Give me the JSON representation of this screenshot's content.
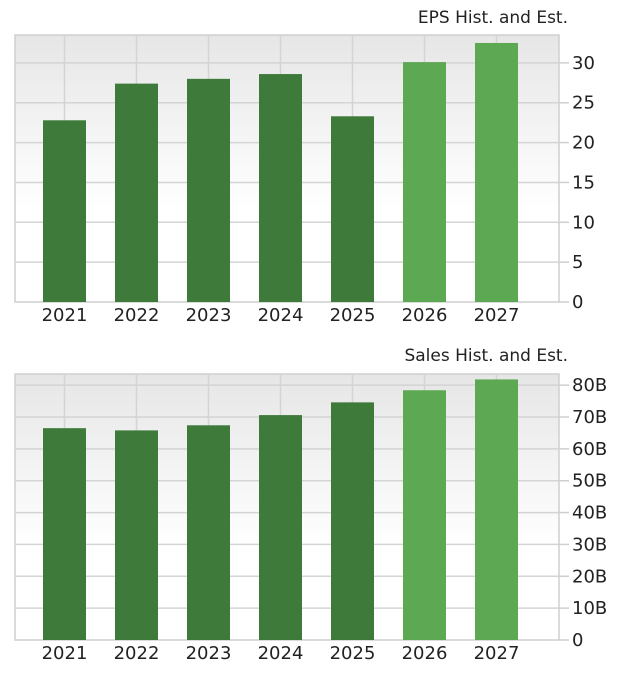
{
  "colors": {
    "historical": "#3e7a3a",
    "estimate": "#5da852",
    "grid": "#d4d4d4",
    "border": "#cfcfcf",
    "plot_bg_top": "#e6e6e6",
    "plot_bg_bottom": "#ffffff"
  },
  "chart_data": [
    {
      "type": "bar",
      "title": "EPS Hist. and Est.",
      "xlabel": "",
      "ylabel": "",
      "categories": [
        "2021",
        "2022",
        "2023",
        "2024",
        "2025",
        "2026",
        "2027"
      ],
      "series": [
        {
          "name": "EPS",
          "values": [
            22.8,
            27.4,
            28.0,
            28.6,
            23.3,
            30.1,
            32.5
          ]
        }
      ],
      "bar_kind": [
        "historical",
        "historical",
        "historical",
        "historical",
        "historical",
        "estimate",
        "estimate"
      ],
      "yticks": [
        0,
        5,
        10,
        15,
        20,
        25,
        30
      ],
      "ytick_labels": [
        "0",
        "5",
        "10",
        "15",
        "20",
        "25",
        "30"
      ],
      "ylim": [
        0,
        33.5
      ],
      "grid": true,
      "axis_position": "right",
      "legend": null
    },
    {
      "type": "bar",
      "title": "Sales Hist. and Est.",
      "xlabel": "",
      "ylabel": "",
      "categories": [
        "2021",
        "2022",
        "2023",
        "2024",
        "2025",
        "2026",
        "2027"
      ],
      "series": [
        {
          "name": "Sales",
          "values": [
            66.5,
            65.8,
            67.4,
            70.6,
            74.6,
            78.4,
            81.8
          ]
        }
      ],
      "value_unit": "B",
      "bar_kind": [
        "historical",
        "historical",
        "historical",
        "historical",
        "historical",
        "estimate",
        "estimate"
      ],
      "yticks": [
        0,
        10,
        20,
        30,
        40,
        50,
        60,
        70,
        80
      ],
      "ytick_labels": [
        "0",
        "10B",
        "20B",
        "30B",
        "40B",
        "50B",
        "60B",
        "70B",
        "80B"
      ],
      "ylim": [
        0,
        83.5
      ],
      "grid": true,
      "axis_position": "right",
      "legend": null
    }
  ]
}
